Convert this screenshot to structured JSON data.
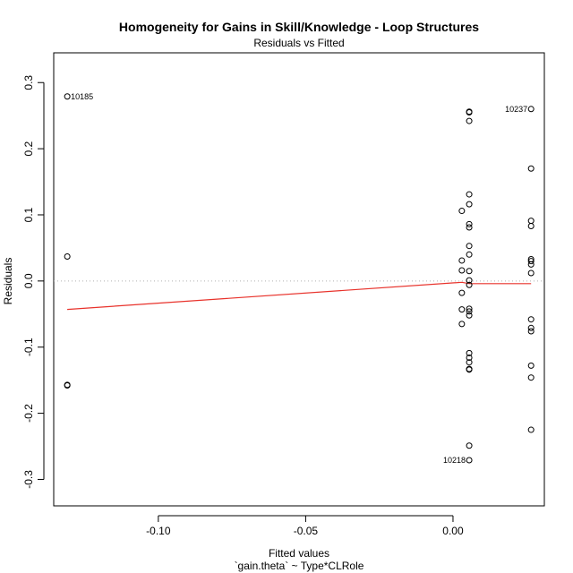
{
  "chart_data": {
    "type": "scatter",
    "title": "Homogeneity for Gains in Skill/Knowledge - Loop Structures",
    "subtitle": "Residuals vs Fitted",
    "xlabel": "Fitted values",
    "xlabel2": "`gain.theta` ~ Type*CLRole",
    "ylabel": "Residuals",
    "xlim": [
      -0.1355,
      0.031
    ],
    "ylim": [
      -0.34,
      0.345
    ],
    "xticks": [
      -0.1,
      -0.05,
      0.0
    ],
    "xtick_labels": [
      "-0.10",
      "-0.05",
      "0.00"
    ],
    "yticks": [
      -0.3,
      -0.2,
      -0.1,
      0.0,
      0.1,
      0.2,
      0.3
    ],
    "ytick_labels": [
      "-0.3",
      "-0.2",
      "-0.1",
      "0.0",
      "0.1",
      "0.2",
      "0.3"
    ],
    "grid": false,
    "reference_line": 0.0,
    "points": [
      {
        "x": -0.1309,
        "y": 0.279,
        "label": "10185"
      },
      {
        "x": -0.1309,
        "y": 0.037
      },
      {
        "x": -0.1309,
        "y": -0.157
      },
      {
        "x": -0.1309,
        "y": -0.158
      },
      {
        "x": 0.003,
        "y": 0.106
      },
      {
        "x": 0.003,
        "y": 0.031
      },
      {
        "x": 0.003,
        "y": 0.016
      },
      {
        "x": 0.003,
        "y": -0.018
      },
      {
        "x": 0.003,
        "y": -0.043
      },
      {
        "x": 0.003,
        "y": -0.065
      },
      {
        "x": 0.0055,
        "y": 0.256
      },
      {
        "x": 0.0055,
        "y": 0.255
      },
      {
        "x": 0.0055,
        "y": 0.242
      },
      {
        "x": 0.0055,
        "y": 0.131
      },
      {
        "x": 0.0055,
        "y": 0.116
      },
      {
        "x": 0.0055,
        "y": 0.086
      },
      {
        "x": 0.0055,
        "y": 0.081
      },
      {
        "x": 0.0055,
        "y": 0.053
      },
      {
        "x": 0.0055,
        "y": 0.04
      },
      {
        "x": 0.0055,
        "y": 0.015
      },
      {
        "x": 0.0055,
        "y": 0.001
      },
      {
        "x": 0.0055,
        "y": -0.006
      },
      {
        "x": 0.0055,
        "y": -0.042
      },
      {
        "x": 0.0055,
        "y": -0.046
      },
      {
        "x": 0.0055,
        "y": -0.052
      },
      {
        "x": 0.0055,
        "y": -0.109
      },
      {
        "x": 0.0055,
        "y": -0.116
      },
      {
        "x": 0.0055,
        "y": -0.123
      },
      {
        "x": 0.0055,
        "y": -0.133
      },
      {
        "x": 0.0055,
        "y": -0.134
      },
      {
        "x": 0.0055,
        "y": -0.249
      },
      {
        "x": 0.0055,
        "y": -0.271,
        "label": "10218"
      },
      {
        "x": 0.0265,
        "y": 0.26,
        "label": "10237"
      },
      {
        "x": 0.0265,
        "y": 0.17
      },
      {
        "x": 0.0265,
        "y": 0.091
      },
      {
        "x": 0.0265,
        "y": 0.083
      },
      {
        "x": 0.0265,
        "y": 0.033
      },
      {
        "x": 0.0265,
        "y": 0.03
      },
      {
        "x": 0.0265,
        "y": 0.025
      },
      {
        "x": 0.0265,
        "y": 0.012
      },
      {
        "x": 0.0265,
        "y": -0.058
      },
      {
        "x": 0.0265,
        "y": -0.071
      },
      {
        "x": 0.0265,
        "y": -0.076
      },
      {
        "x": 0.0265,
        "y": -0.128
      },
      {
        "x": 0.0265,
        "y": -0.146
      },
      {
        "x": 0.0265,
        "y": -0.225
      }
    ],
    "smooth_line": {
      "color": "#e8322b",
      "x": [
        -0.1309,
        0.003,
        0.0055,
        0.0265
      ],
      "y": [
        -0.043,
        -0.002,
        -0.004,
        -0.004
      ]
    },
    "point_color": "#000000",
    "reference_line_color": "#b0b0b0"
  }
}
